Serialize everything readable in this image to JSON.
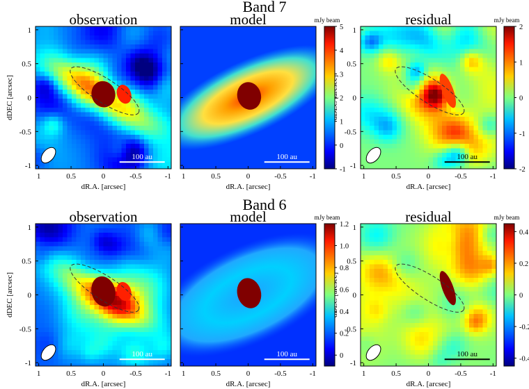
{
  "figure": {
    "bands": [
      {
        "title": "Band 7",
        "panels": [
          {
            "title": "observation",
            "kind": "observation",
            "scale_label": "100 au",
            "scale_color": "#ffffff"
          },
          {
            "title": "model",
            "kind": "model",
            "scale_label": "100 au",
            "scale_color": "#ffffff"
          },
          {
            "title": "residual",
            "kind": "residual",
            "scale_label": "100 au",
            "scale_color": "#000000"
          }
        ],
        "colorbars": [
          {
            "unit": "mJy beam",
            "ticks": [
              "5",
              "4",
              "3",
              "2",
              "1",
              "0",
              "-1"
            ],
            "range": [
              -1,
              5
            ]
          },
          {
            "unit": "mJy beam",
            "ticks": [
              "2",
              "1",
              "0",
              "-1",
              "-2"
            ],
            "range": [
              -2,
              2
            ]
          }
        ]
      },
      {
        "title": "Band 6",
        "panels": [
          {
            "title": "observation",
            "kind": "observation",
            "scale_label": "100 au",
            "scale_color": "#ffffff"
          },
          {
            "title": "model",
            "kind": "model",
            "scale_label": "100 au",
            "scale_color": "#ffffff"
          },
          {
            "title": "residual",
            "kind": "residual",
            "scale_label": "100 au",
            "scale_color": "#000000"
          }
        ],
        "colorbars": [
          {
            "unit": "mJy beam",
            "ticks": [
              "1.2",
              "1.0",
              "0.8",
              "0.6",
              "0.4",
              "0.2",
              "0"
            ],
            "range": [
              -0.1,
              1.2
            ]
          },
          {
            "unit": "mJy beam",
            "ticks": [
              "0.4",
              "0.2",
              "0",
              "-0.2",
              "-0.4"
            ],
            "range": [
              -0.45,
              0.45
            ]
          }
        ]
      }
    ]
  },
  "chart_data": {
    "type": "heatmap",
    "title": "Band 7 / Band 6",
    "xlabel": "dR.A. [arcsec]",
    "ylabel": "dDEC [arcsec]",
    "xticks": [
      "1",
      "0.5",
      "0",
      "-0.5",
      "-1"
    ],
    "yticks": [
      "1",
      "0.5",
      "0",
      "-0.5",
      "-1"
    ],
    "xlim": [
      1.05,
      -1.05
    ],
    "ylim": [
      -1.05,
      1.05
    ],
    "colormap": "jet",
    "panels": [
      "observation",
      "model",
      "residual"
    ],
    "scale_bar": "100 au",
    "colorbar_unit": "mJy beam"
  },
  "colors": {
    "ellipse_dash": "#333333",
    "beam_fill": "#ffffff"
  }
}
